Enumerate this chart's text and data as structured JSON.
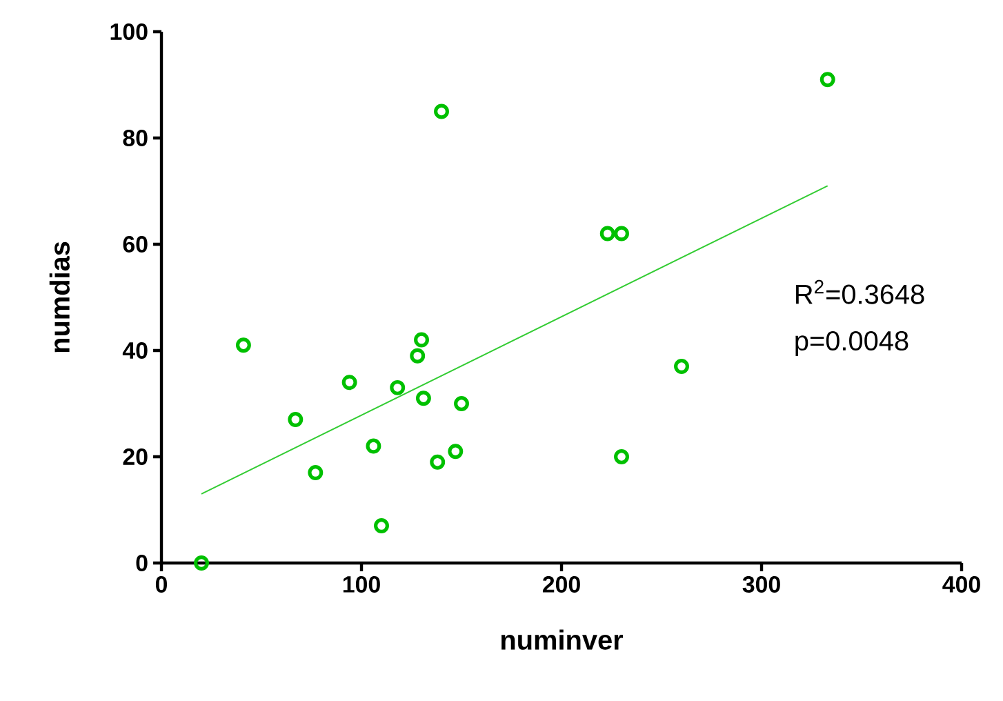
{
  "chart_data": {
    "type": "scatter",
    "xlabel": "numinver",
    "ylabel": "numdias",
    "xlim": [
      0,
      400
    ],
    "xticks": [
      0,
      100,
      200,
      300,
      400
    ],
    "ylim": [
      0,
      100
    ],
    "yticks": [
      0,
      20,
      40,
      60,
      80,
      100
    ],
    "marker": "circle",
    "grid": false,
    "series": [
      {
        "color": "#00c000",
        "x": [
          20,
          41,
          67,
          77,
          94,
          106,
          110,
          118,
          128,
          130,
          131,
          140,
          138,
          147,
          150,
          223,
          230,
          230,
          260,
          333
        ],
        "values": [
          0,
          41,
          27,
          17,
          34,
          22,
          7,
          33,
          39,
          42,
          31,
          85,
          19,
          21,
          30,
          62,
          62,
          20,
          37,
          91
        ]
      },
      {
        "type": "line",
        "color": "#33cc33",
        "marker": "none",
        "line_style": "solid",
        "x": [
          20,
          333
        ],
        "values": [
          13,
          71
        ]
      }
    ],
    "annotations": [
      "R$^{2}$=0.3648",
      "p=0.0048"
    ]
  }
}
